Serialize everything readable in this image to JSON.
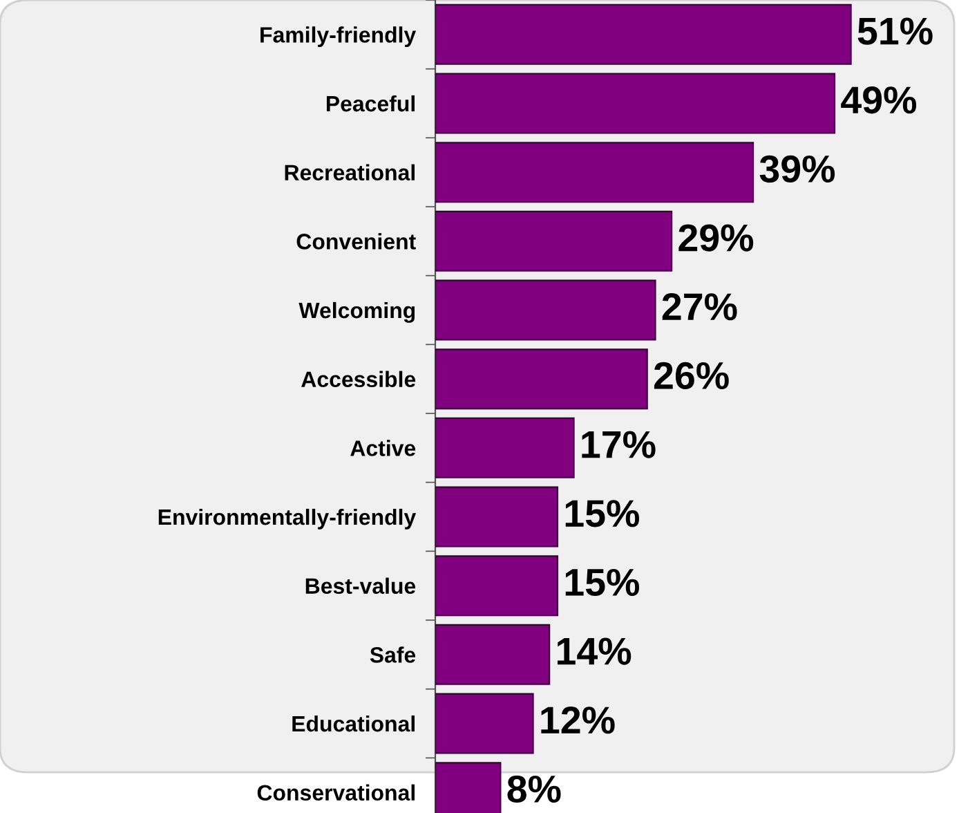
{
  "chart_data": {
    "type": "bar",
    "orientation": "horizontal",
    "categories": [
      "Family-friendly",
      "Peaceful",
      "Recreational",
      "Convenient",
      "Welcoming",
      "Accessible",
      "Active",
      "Environmentally-friendly",
      "Best-value",
      "Safe",
      "Educational",
      "Conservational"
    ],
    "values": [
      51,
      49,
      39,
      29,
      27,
      26,
      17,
      15,
      15,
      14,
      12,
      8
    ],
    "value_labels": [
      "51%",
      "49%",
      "39%",
      "29%",
      "27%",
      "26%",
      "17%",
      "15%",
      "15%",
      "14%",
      "12%",
      "8%"
    ],
    "color": "#800080",
    "grid": false
  }
}
